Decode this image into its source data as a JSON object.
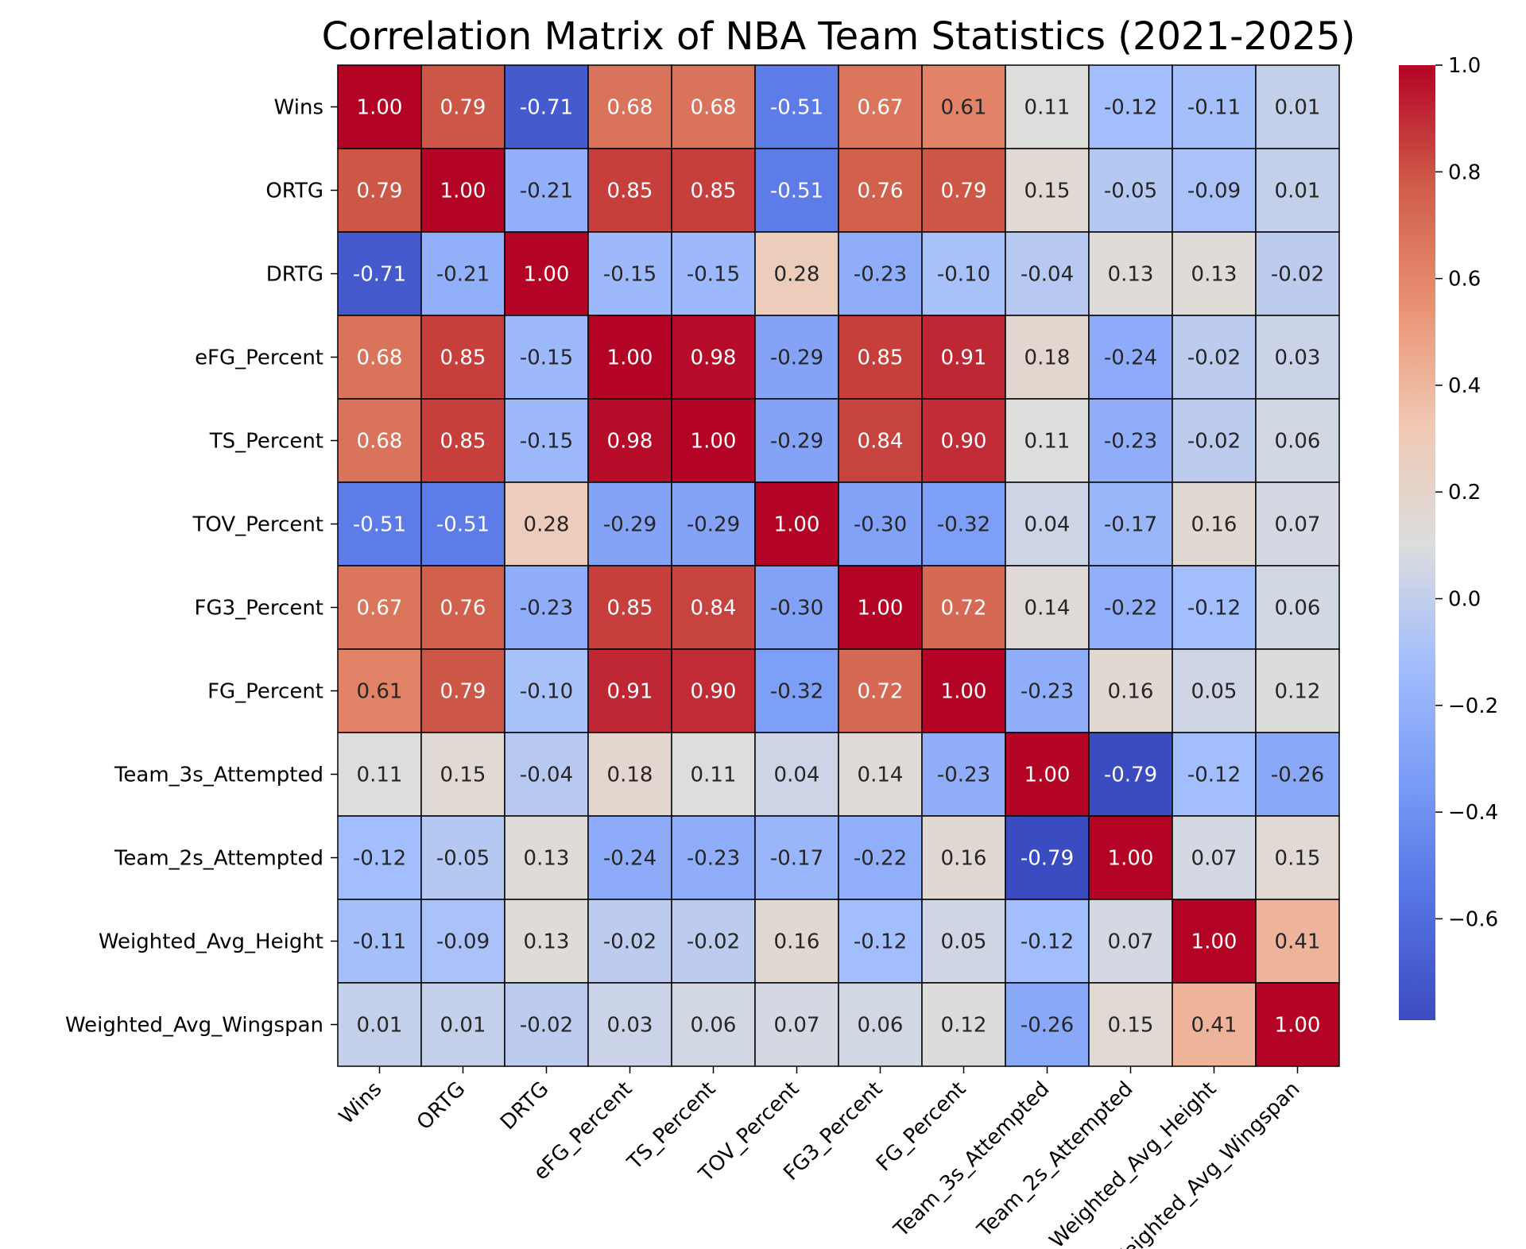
{
  "chart_data": {
    "type": "heatmap",
    "title": "Correlation Matrix of NBA Team Statistics (2021-2025)",
    "xlabel": "",
    "ylabel": "",
    "rows": [
      "Wins",
      "ORTG",
      "DRTG",
      "eFG_Percent",
      "TS_Percent",
      "TOV_Percent",
      "FG3_Percent",
      "FG_Percent",
      "Team_3s_Attempted",
      "Team_2s_Attempted",
      "Weighted_Avg_Height",
      "Weighted_Avg_Wingspan"
    ],
    "columns": [
      "Wins",
      "ORTG",
      "DRTG",
      "eFG_Percent",
      "TS_Percent",
      "TOV_Percent",
      "FG3_Percent",
      "FG_Percent",
      "Team_3s_Attempted",
      "Team_2s_Attempted",
      "Weighted_Avg_Height",
      "Weighted_Avg_Wingspan"
    ],
    "values": [
      [
        1.0,
        0.79,
        -0.71,
        0.68,
        0.68,
        -0.51,
        0.67,
        0.61,
        0.11,
        -0.12,
        -0.11,
        0.01
      ],
      [
        0.79,
        1.0,
        -0.21,
        0.85,
        0.85,
        -0.51,
        0.76,
        0.79,
        0.15,
        -0.05,
        -0.09,
        0.01
      ],
      [
        -0.71,
        -0.21,
        1.0,
        -0.15,
        -0.15,
        0.28,
        -0.23,
        -0.1,
        -0.04,
        0.13,
        0.13,
        -0.02
      ],
      [
        0.68,
        0.85,
        -0.15,
        1.0,
        0.98,
        -0.29,
        0.85,
        0.91,
        0.18,
        -0.24,
        -0.02,
        0.03
      ],
      [
        0.68,
        0.85,
        -0.15,
        0.98,
        1.0,
        -0.29,
        0.84,
        0.9,
        0.11,
        -0.23,
        -0.02,
        0.06
      ],
      [
        -0.51,
        -0.51,
        0.28,
        -0.29,
        -0.29,
        1.0,
        -0.3,
        -0.32,
        0.04,
        -0.17,
        0.16,
        0.07
      ],
      [
        0.67,
        0.76,
        -0.23,
        0.85,
        0.84,
        -0.3,
        1.0,
        0.72,
        0.14,
        -0.22,
        -0.12,
        0.06
      ],
      [
        0.61,
        0.79,
        -0.1,
        0.91,
        0.9,
        -0.32,
        0.72,
        1.0,
        -0.23,
        0.16,
        0.05,
        0.12
      ],
      [
        0.11,
        0.15,
        -0.04,
        0.18,
        0.11,
        0.04,
        0.14,
        -0.23,
        1.0,
        -0.79,
        -0.12,
        -0.26
      ],
      [
        -0.12,
        -0.05,
        0.13,
        -0.24,
        -0.23,
        -0.17,
        -0.22,
        0.16,
        -0.79,
        1.0,
        0.07,
        0.15
      ],
      [
        -0.11,
        -0.09,
        0.13,
        -0.02,
        -0.02,
        0.16,
        -0.12,
        0.05,
        -0.12,
        0.07,
        1.0,
        0.41
      ],
      [
        0.01,
        0.01,
        -0.02,
        0.03,
        0.06,
        0.07,
        0.06,
        0.12,
        -0.26,
        0.15,
        0.41,
        1.0
      ]
    ],
    "annotation_format": "0.00",
    "colormap": "coolwarm",
    "vmin": -0.79,
    "vmax": 1.0,
    "colorbar": {
      "ticks": [
        1.0,
        0.8,
        0.6,
        0.4,
        0.2,
        0.0,
        -0.2,
        -0.4,
        -0.6
      ],
      "tick_labels": [
        "1.0",
        "0.8",
        "0.6",
        "0.4",
        "0.2",
        "0.0",
        "−0.2",
        "−0.4",
        "−0.6"
      ]
    },
    "x_tick_rotation_deg": 45,
    "cell_border_color": "#000000"
  },
  "colors": {
    "cold": "#3b4cc0",
    "neutral": "#dddddd",
    "hot": "#b40426",
    "dark_text": "#262626",
    "light_text": "#ffffff"
  }
}
